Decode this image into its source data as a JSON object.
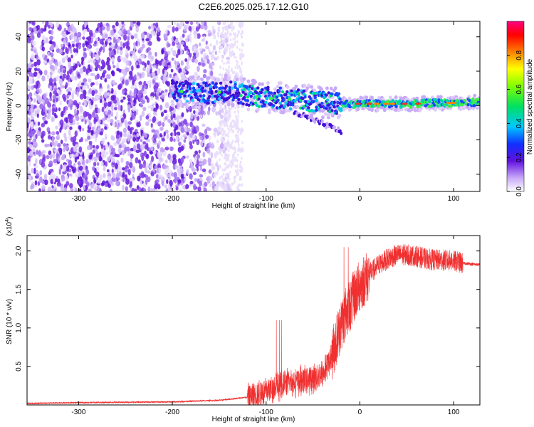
{
  "title": "C2E6.2025.025.17.12.G10",
  "chart_data": [
    {
      "type": "heatmap",
      "xlabel": "Height of straight line (km)",
      "ylabel": "Frequency (Hz)",
      "xlim": [
        -355,
        128
      ],
      "ylim": [
        -50,
        49
      ],
      "x_ticks": [
        -300,
        -200,
        -100,
        0,
        100
      ],
      "y_ticks": [
        -40,
        -20,
        0,
        20,
        40
      ],
      "colorbar": {
        "label": "Normalized spectral amplitude",
        "range": [
          0,
          1
        ],
        "ticks": [
          0.0,
          0.2,
          0.4,
          0.6,
          0.8
        ]
      },
      "ridge": {
        "x": [
          -200,
          -180,
          -160,
          -140,
          -120,
          -100,
          -80,
          -60,
          -40,
          -20,
          0,
          20,
          40,
          60,
          80,
          100,
          128
        ],
        "freq": [
          9,
          8,
          7,
          9,
          6,
          5,
          4,
          3,
          2,
          1,
          1,
          1,
          1,
          1,
          1.5,
          1.5,
          2
        ]
      },
      "noise_region_x": [
        -355,
        -135
      ]
    },
    {
      "type": "line",
      "xlabel": "Height of straight line (km)",
      "ylabel": "SNR (10 * v/v)",
      "y_multiplier": "(x10^4)",
      "xlim": [
        -355,
        128
      ],
      "ylim": [
        0,
        2.2
      ],
      "x_ticks": [
        -300,
        -200,
        -100,
        0,
        100
      ],
      "y_ticks": [
        0.5,
        1.0,
        1.5,
        2.0
      ],
      "y_tick_labels": [
        "0.5",
        "1.0",
        "1.5",
        "2.0"
      ],
      "series": [
        {
          "color": "#f03030",
          "x": [
            -355,
            -300,
            -200,
            -150,
            -120,
            -100,
            -90,
            -80,
            -70,
            -60,
            -50,
            -40,
            -35,
            -30,
            -25,
            -20,
            -15,
            -10,
            -5,
            0,
            10,
            20,
            30,
            40,
            50,
            60,
            70,
            80,
            90,
            100,
            110,
            128
          ],
          "y": [
            0.02,
            0.03,
            0.04,
            0.06,
            0.1,
            0.18,
            0.24,
            0.28,
            0.3,
            0.32,
            0.34,
            0.4,
            0.5,
            0.65,
            0.85,
            1.05,
            1.2,
            1.3,
            1.45,
            1.55,
            1.7,
            1.82,
            1.9,
            1.95,
            1.95,
            1.93,
            1.9,
            1.88,
            1.88,
            1.87,
            1.84,
            1.82
          ]
        }
      ]
    }
  ]
}
